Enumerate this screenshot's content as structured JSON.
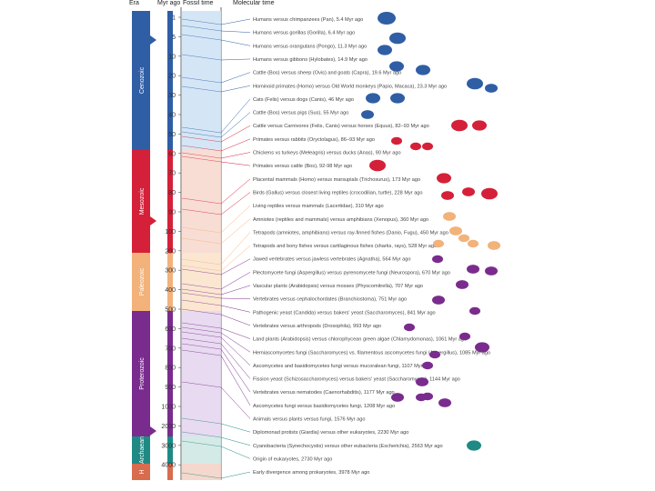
{
  "headers": {
    "era": "Era",
    "myr": "Myr ago",
    "fossil": "Fossil time",
    "molecular": "Molecular time"
  },
  "eras": [
    {
      "name": "Cenozoic",
      "color": "#2f5ea5"
    },
    {
      "name": "Mesozoic",
      "color": "#d52039"
    },
    {
      "name": "Paleozoic",
      "color": "#f2b27a"
    },
    {
      "name": "Proterozoic",
      "color": "#7a2c8e"
    },
    {
      "name": "Archaean",
      "color": "#1f8a84"
    },
    {
      "name": "H",
      "color": "#d86c4e"
    }
  ],
  "ticks": [
    "1",
    "5",
    "10",
    "20",
    "30",
    "40",
    "50",
    "60",
    "70",
    "80",
    "90",
    "100",
    "200",
    "300",
    "400",
    "500",
    "600",
    "700",
    "800",
    "900",
    "1000",
    "2000",
    "3000",
    "4000"
  ],
  "comparisons": [
    {
      "text": "Humans versus chimpanzees (Pan), 5.4 Myr ago",
      "color": "#2f5ea5"
    },
    {
      "text": "Humans versus gorillas (Gorilla), 6.4 Myr ago",
      "color": "#2f5ea5"
    },
    {
      "text": "Humans versus orangutans (Pongo), 11.3 Myr ago",
      "color": "#2f5ea5"
    },
    {
      "text": "Humans versus gibbons (Hylobates), 14.9 Myr ago",
      "color": "#2f5ea5"
    },
    {
      "text": "Cattle (Bos) versus sheep (Ovis) and goats (Capra), 19.6 Myr ago",
      "color": "#2f5ea5"
    },
    {
      "text": "Hominoid primates (Homo) versus Old World monkeys (Papio, Macaca), 23.3 Myr ago",
      "color": "#2f5ea5"
    },
    {
      "text": "Cats (Felis) versus dogs (Canis), 46 Myr ago",
      "color": "#2f5ea5"
    },
    {
      "text": "Cattle (Bos) versus pigs (Sus), 55 Myr ago",
      "color": "#2f5ea5"
    },
    {
      "text": "Cattle versus Carnivores (Felis, Canis) versus horses (Equus), 82–93 Myr ago",
      "color": "#d52039"
    },
    {
      "text": "Primates versus rabbits (Oryctolagus), 86–93 Myr ago",
      "color": "#d52039"
    },
    {
      "text": "Chickens vs turkeys (Meleagris) versus ducks (Anas), 90 Myr ago",
      "color": "#d52039"
    },
    {
      "text": "Primates versus cattle (Bos), 92-98 Myr ago",
      "color": "#d52039"
    },
    {
      "text": "Placental mammals (Homo) versus marsupials (Trichosurus), 173 Myr ago",
      "color": "#d52039"
    },
    {
      "text": "Birds (Gallus) versus closest living reptiles (crocodilian, turtle), 228 Myr ago",
      "color": "#d52039"
    },
    {
      "text": "Living reptiles versus mammals (Lacertidae), 310 Myr ago",
      "color": "#f2b27a"
    },
    {
      "text": "Amniotes (reptiles and mammals) versus amphibians (Xenopus), 360 Myr ago",
      "color": "#f2b27a"
    },
    {
      "text": "Tetrapods (amniotes, amphibians) versus ray-finned fishes (Danio, Fugu), 450 Myr ago",
      "color": "#f2b27a"
    },
    {
      "text": "Tetrapods and bony fishes versus cartilaginous fishes (sharks, rays), 528 Myr ago",
      "color": "#f2b27a"
    },
    {
      "text": "Jawed vertebrates versus jawless vertebrates (Agnatha), 564 Myr ago",
      "color": "#7a2c8e"
    },
    {
      "text": "Plectomycete fungi (Aspergillus) versus pyrenomycete fungi (Neurospora), 670 Myr ago",
      "color": "#7a2c8e"
    },
    {
      "text": "Vascular plants (Arabidopsis) versus mosses (Physcomitrella), 707 Myr ago",
      "color": "#7a2c8e"
    },
    {
      "text": "Vertebrates versus cephalochordates (Branchiostoma), 751 Myr ago",
      "color": "#7a2c8e"
    },
    {
      "text": "Pathogenic yeast (Candida) versus bakers' yeast (Saccharomyces), 841 Myr ago",
      "color": "#7a2c8e"
    },
    {
      "text": "Vertebrates versus arthropods (Drosophila), 993 Myr ago",
      "color": "#7a2c8e"
    },
    {
      "text": "Land plants (Arabidopsis) versus chlorophycean green algae (Chlamydomonas), 1061 Myr ago",
      "color": "#7a2c8e"
    },
    {
      "text": "Hemiascomycetes fungi (Saccharomyces) vs. filamentous ascomycetes fungi (Aspergillus), 1085 Myr ago",
      "color": "#7a2c8e"
    },
    {
      "text": "Ascomycetes and basidiomycetes fungi versus mucoralean fungi, 1107 Myr ago",
      "color": "#7a2c8e"
    },
    {
      "text": "Fission yeast (Schizosaccharomyces) versus bakers' yeast (Saccharomyces), 1144 Myr ago",
      "color": "#7a2c8e"
    },
    {
      "text": "Vertebrates versus nematodes (Caenorhabditis), 1177 Myr ago",
      "color": "#7a2c8e"
    },
    {
      "text": "Ascomycetes fungi versus basidiomycetes fungi, 1208 Myr ago",
      "color": "#7a2c8e"
    },
    {
      "text": "Animals versus plants versus fungi, 1576 Myr ago",
      "color": "#7a2c8e"
    },
    {
      "text": "Diplomonad protists (Giardia) versus other eukaryotes, 2230 Myr ago",
      "color": "#1f8a84"
    },
    {
      "text": "Cyanobacteria (Synechocystis) versus other eubacteria (Escherichia), 2563 Myr ago",
      "color": "#1f8a84"
    },
    {
      "text": "Origin of eukaryotes, 2730 Myr ago",
      "color": "#1f8a84"
    },
    {
      "text": "Early divergence among prokaryotes, 3978 Myr ago",
      "color": "#1f8a84"
    }
  ]
}
